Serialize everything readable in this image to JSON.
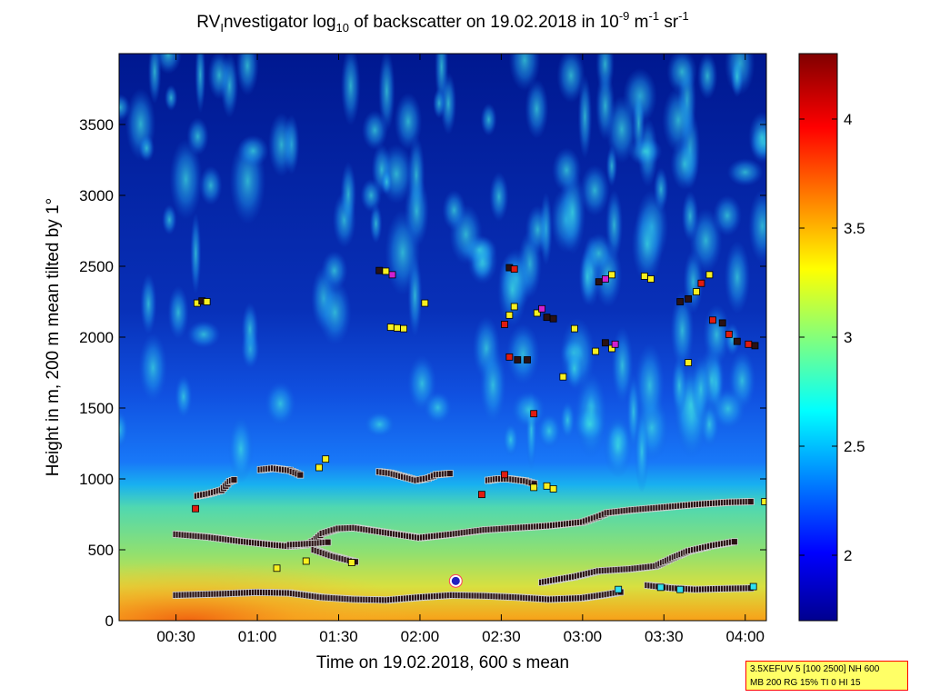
{
  "chart_data": {
    "type": "heatmap",
    "title": "RVInvestigator log10 of backscatter on 19.02.2018 in 10-9 m-1 sr-1",
    "title_parts": {
      "pre": "RV",
      "sub_i": "I",
      "mid": "nvestigator log",
      "sub_10": "10",
      "post1": " of backscatter on 19.02.2018 in 10",
      "sup1": "-9",
      "post2": " m",
      "sup2": "-1",
      "post3": " sr",
      "sup3": "-1"
    },
    "xlabel": "Time on 19.02.2018, 600 s mean",
    "ylabel": "Height in m, 200 m mean tilted by 1°",
    "x_unit": "hours",
    "xlim": [
      0.15,
      4.13
    ],
    "ylim": [
      0,
      4000
    ],
    "x_ticks": [
      {
        "value": 0.5,
        "label": "00:30"
      },
      {
        "value": 1.0,
        "label": "01:00"
      },
      {
        "value": 1.5,
        "label": "01:30"
      },
      {
        "value": 2.0,
        "label": "02:00"
      },
      {
        "value": 2.5,
        "label": "02:30"
      },
      {
        "value": 3.0,
        "label": "03:00"
      },
      {
        "value": 3.5,
        "label": "03:30"
      },
      {
        "value": 4.0,
        "label": "04:00"
      }
    ],
    "y_ticks": [
      0,
      500,
      1000,
      1500,
      2000,
      2500,
      3000,
      3500
    ],
    "colorbar": {
      "range": [
        1.7,
        4.3
      ],
      "ticks": [
        2,
        2.5,
        3,
        3.5,
        4
      ],
      "colormap": "jet"
    },
    "marker_colors": {
      "dark": "#2a1214",
      "red": "#e01c10",
      "yellow": "#f8f020",
      "magenta": "#d020d0",
      "cyan": "#30e0f0"
    },
    "layer_lines": [
      {
        "name": "lowest",
        "points": [
          [
            0.5,
            180
          ],
          [
            0.8,
            190
          ],
          [
            1.0,
            200
          ],
          [
            1.2,
            195
          ],
          [
            1.4,
            165
          ],
          [
            1.6,
            150
          ],
          [
            1.8,
            145
          ],
          [
            2.0,
            165
          ],
          [
            2.2,
            180
          ],
          [
            2.4,
            175
          ],
          [
            2.6,
            165
          ],
          [
            2.8,
            150
          ],
          [
            3.0,
            160
          ],
          [
            3.15,
            185
          ],
          [
            3.25,
            205
          ]
        ]
      },
      {
        "name": "lowest-right",
        "points": [
          [
            3.4,
            250
          ],
          [
            3.55,
            230
          ],
          [
            3.7,
            220
          ],
          [
            3.85,
            225
          ],
          [
            4.05,
            230
          ]
        ]
      },
      {
        "name": "middle-left",
        "points": [
          [
            0.5,
            610
          ],
          [
            0.7,
            590
          ],
          [
            0.9,
            560
          ],
          [
            1.1,
            535
          ],
          [
            1.2,
            525
          ],
          [
            1.3,
            535
          ],
          [
            1.35,
            565
          ],
          [
            1.4,
            615
          ],
          [
            1.5,
            650
          ],
          [
            1.6,
            655
          ],
          [
            1.8,
            620
          ],
          [
            2.0,
            585
          ],
          [
            2.2,
            610
          ],
          [
            2.4,
            640
          ],
          [
            2.6,
            655
          ],
          [
            2.8,
            670
          ],
          [
            3.0,
            695
          ],
          [
            3.1,
            735
          ],
          [
            3.15,
            760
          ],
          [
            3.3,
            780
          ],
          [
            3.5,
            800
          ],
          [
            3.7,
            820
          ],
          [
            3.9,
            835
          ],
          [
            4.05,
            840
          ]
        ]
      },
      {
        "name": "middle-inner",
        "points": [
          [
            1.2,
            535
          ],
          [
            1.35,
            545
          ],
          [
            1.45,
            555
          ]
        ]
      },
      {
        "name": "lower-rising",
        "points": [
          [
            2.75,
            270
          ],
          [
            2.95,
            310
          ],
          [
            3.1,
            350
          ],
          [
            3.3,
            365
          ],
          [
            3.45,
            385
          ],
          [
            3.55,
            440
          ],
          [
            3.65,
            490
          ],
          [
            3.8,
            530
          ],
          [
            3.95,
            560
          ]
        ]
      },
      {
        "name": "small-dip",
        "points": [
          [
            1.35,
            500
          ],
          [
            1.45,
            460
          ],
          [
            1.55,
            430
          ],
          [
            1.62,
            410
          ]
        ]
      },
      {
        "name": "cloud-base-left",
        "points": [
          [
            0.63,
            880
          ],
          [
            0.7,
            895
          ],
          [
            0.78,
            920
          ],
          [
            0.83,
            980
          ],
          [
            0.87,
            1000
          ]
        ]
      },
      {
        "name": "cloud-base-mid1",
        "points": [
          [
            1.02,
            1065
          ],
          [
            1.1,
            1075
          ],
          [
            1.2,
            1060
          ],
          [
            1.28,
            1020
          ]
        ]
      },
      {
        "name": "cloud-base-mid2",
        "points": [
          [
            1.75,
            1050
          ],
          [
            1.82,
            1040
          ],
          [
            1.9,
            1015
          ],
          [
            1.98,
            990
          ],
          [
            2.05,
            1005
          ],
          [
            2.1,
            1030
          ],
          [
            2.2,
            1040
          ]
        ]
      },
      {
        "name": "cloud-base-right",
        "points": [
          [
            2.42,
            990
          ],
          [
            2.48,
            1000
          ],
          [
            2.55,
            1000
          ],
          [
            2.65,
            985
          ],
          [
            2.72,
            960
          ]
        ]
      }
    ],
    "scatter_points": [
      {
        "x": 0.63,
        "y": 2240,
        "c": "yellow"
      },
      {
        "x": 0.66,
        "y": 2255,
        "c": "dark"
      },
      {
        "x": 0.69,
        "y": 2250,
        "c": "yellow"
      },
      {
        "x": 1.75,
        "y": 2470,
        "c": "dark"
      },
      {
        "x": 1.79,
        "y": 2465,
        "c": "yellow"
      },
      {
        "x": 1.83,
        "y": 2440,
        "c": "magenta"
      },
      {
        "x": 1.82,
        "y": 2070,
        "c": "yellow"
      },
      {
        "x": 1.86,
        "y": 2065,
        "c": "yellow"
      },
      {
        "x": 1.9,
        "y": 2060,
        "c": "yellow"
      },
      {
        "x": 2.03,
        "y": 2240,
        "c": "yellow"
      },
      {
        "x": 2.55,
        "y": 2490,
        "c": "dark"
      },
      {
        "x": 2.58,
        "y": 2480,
        "c": "red"
      },
      {
        "x": 2.58,
        "y": 2215,
        "c": "yellow"
      },
      {
        "x": 2.55,
        "y": 2155,
        "c": "yellow"
      },
      {
        "x": 2.52,
        "y": 2090,
        "c": "red"
      },
      {
        "x": 2.72,
        "y": 2170,
        "c": "yellow"
      },
      {
        "x": 2.78,
        "y": 2140,
        "c": "dark"
      },
      {
        "x": 2.82,
        "y": 2130,
        "c": "dark"
      },
      {
        "x": 2.75,
        "y": 2200,
        "c": "magenta"
      },
      {
        "x": 2.95,
        "y": 2060,
        "c": "yellow"
      },
      {
        "x": 2.55,
        "y": 1860,
        "c": "red"
      },
      {
        "x": 2.6,
        "y": 1840,
        "c": "dark"
      },
      {
        "x": 2.66,
        "y": 1840,
        "c": "dark"
      },
      {
        "x": 2.88,
        "y": 1720,
        "c": "yellow"
      },
      {
        "x": 2.7,
        "y": 1460,
        "c": "red"
      },
      {
        "x": 3.1,
        "y": 2390,
        "c": "dark"
      },
      {
        "x": 3.14,
        "y": 2410,
        "c": "magenta"
      },
      {
        "x": 3.18,
        "y": 2440,
        "c": "yellow"
      },
      {
        "x": 3.08,
        "y": 1900,
        "c": "yellow"
      },
      {
        "x": 3.14,
        "y": 1960,
        "c": "dark"
      },
      {
        "x": 3.18,
        "y": 1920,
        "c": "yellow"
      },
      {
        "x": 3.2,
        "y": 1950,
        "c": "magenta"
      },
      {
        "x": 3.38,
        "y": 2430,
        "c": "yellow"
      },
      {
        "x": 3.42,
        "y": 2410,
        "c": "yellow"
      },
      {
        "x": 3.6,
        "y": 2250,
        "c": "dark"
      },
      {
        "x": 3.65,
        "y": 2270,
        "c": "dark"
      },
      {
        "x": 3.7,
        "y": 2320,
        "c": "yellow"
      },
      {
        "x": 3.73,
        "y": 2380,
        "c": "red"
      },
      {
        "x": 3.78,
        "y": 2440,
        "c": "yellow"
      },
      {
        "x": 3.65,
        "y": 1820,
        "c": "yellow"
      },
      {
        "x": 3.8,
        "y": 2120,
        "c": "red"
      },
      {
        "x": 3.86,
        "y": 2100,
        "c": "dark"
      },
      {
        "x": 3.9,
        "y": 2020,
        "c": "red"
      },
      {
        "x": 3.95,
        "y": 1970,
        "c": "dark"
      },
      {
        "x": 4.02,
        "y": 1950,
        "c": "red"
      },
      {
        "x": 4.06,
        "y": 1940,
        "c": "dark"
      },
      {
        "x": 0.62,
        "y": 790,
        "c": "red"
      },
      {
        "x": 1.42,
        "y": 1140,
        "c": "yellow"
      },
      {
        "x": 1.38,
        "y": 1080,
        "c": "yellow"
      },
      {
        "x": 2.38,
        "y": 890,
        "c": "red"
      },
      {
        "x": 2.52,
        "y": 1030,
        "c": "red"
      },
      {
        "x": 2.7,
        "y": 940,
        "c": "yellow"
      },
      {
        "x": 2.78,
        "y": 950,
        "c": "yellow"
      },
      {
        "x": 2.82,
        "y": 930,
        "c": "yellow"
      },
      {
        "x": 1.58,
        "y": 410,
        "c": "yellow"
      },
      {
        "x": 1.12,
        "y": 370,
        "c": "yellow"
      },
      {
        "x": 1.3,
        "y": 420,
        "c": "yellow"
      },
      {
        "x": 3.48,
        "y": 235,
        "c": "cyan"
      },
      {
        "x": 3.6,
        "y": 220,
        "c": "cyan"
      },
      {
        "x": 4.05,
        "y": 240,
        "c": "cyan"
      },
      {
        "x": 3.22,
        "y": 220,
        "c": "cyan"
      },
      {
        "x": 4.12,
        "y": 840,
        "c": "yellow"
      }
    ],
    "special_marker": {
      "x": 2.22,
      "y": 280,
      "fill": "#2020c0",
      "ring": "#ff4060"
    }
  },
  "info_box": {
    "line1": "3.5XEFUV 5 [100 2500] NH 600",
    "line2": "MB 200 RG 15% TI 0 HI 15"
  }
}
